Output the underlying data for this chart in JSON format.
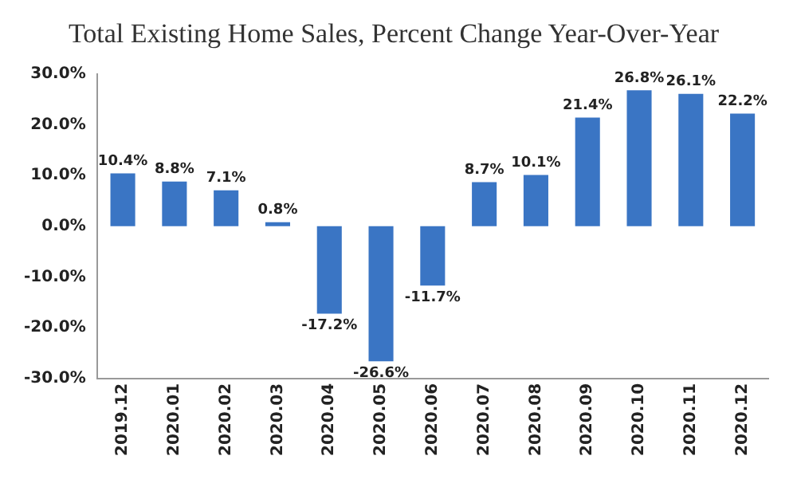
{
  "chart_data": {
    "type": "bar",
    "title": "Total Existing Home Sales, Percent Change Year-Over-Year",
    "categories": [
      "2019.12",
      "2020.01",
      "2020.02",
      "2020.03",
      "2020.04",
      "2020.05",
      "2020.06",
      "2020.07",
      "2020.08",
      "2020.09",
      "2020.10",
      "2020.11",
      "2020.12"
    ],
    "values": [
      10.4,
      8.8,
      7.1,
      0.8,
      -17.2,
      -26.6,
      -11.7,
      8.7,
      10.1,
      21.4,
      26.8,
      26.1,
      22.2
    ],
    "value_labels": [
      "10.4%",
      "8.8%",
      "7.1%",
      "0.8%",
      "-17.2%",
      "-26.6%",
      "-11.7%",
      "8.7%",
      "10.1%",
      "21.4%",
      "26.8%",
      "26.1%",
      "22.2%"
    ],
    "color": "#3a75c4",
    "ylim": [
      -30,
      30
    ],
    "yticks": [
      {
        "value": -30,
        "label": "-30.0%"
      },
      {
        "value": -20,
        "label": "-20.0%"
      },
      {
        "value": -10,
        "label": "-10.0%"
      },
      {
        "value": 0,
        "label": "0.0%"
      },
      {
        "value": 10,
        "label": "10.0%"
      },
      {
        "value": 20,
        "label": "20.0%"
      },
      {
        "value": 30,
        "label": "30.0%"
      }
    ],
    "grid": false,
    "legend": false
  }
}
